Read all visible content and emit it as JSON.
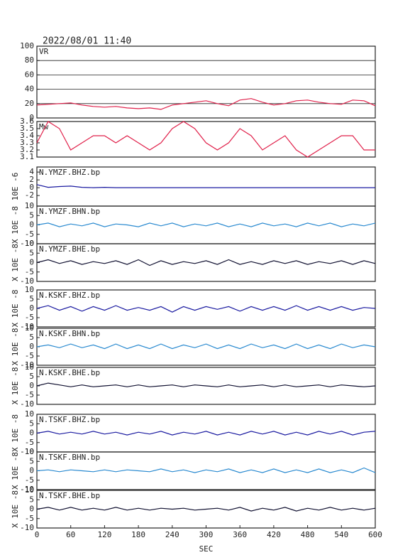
{
  "chart_data": [
    {
      "type": "line",
      "title": "2022/08/01  11:40",
      "panel_label": "VR",
      "ylim": [
        0,
        100
      ],
      "yticks": [
        0,
        20,
        40,
        60,
        80,
        100
      ],
      "grid": true,
      "x": [
        0,
        20,
        40,
        60,
        80,
        100,
        120,
        140,
        160,
        180,
        200,
        220,
        240,
        260,
        280,
        300,
        320,
        340,
        360,
        380,
        400,
        420,
        440,
        460,
        480,
        500,
        520,
        540,
        560,
        580,
        600
      ],
      "series": [
        {
          "color": "#e0204a",
          "values": [
            18,
            19,
            20,
            21,
            18,
            16,
            15,
            16,
            14,
            13,
            14,
            12,
            18,
            20,
            22,
            24,
            20,
            17,
            25,
            27,
            22,
            18,
            20,
            24,
            25,
            22,
            20,
            19,
            25,
            24,
            17
          ]
        }
      ]
    },
    {
      "type": "line",
      "panel_label": "Mw",
      "ylim": [
        3.1,
        3.6
      ],
      "yticks": [
        3.1,
        3.2,
        3.3,
        3.4,
        3.5,
        3.6
      ],
      "grid": false,
      "x": [
        0,
        20,
        40,
        60,
        80,
        100,
        120,
        140,
        160,
        180,
        200,
        220,
        240,
        260,
        280,
        300,
        320,
        340,
        360,
        380,
        400,
        420,
        440,
        460,
        480,
        500,
        520,
        540,
        560,
        580,
        600
      ],
      "series": [
        {
          "color": "#e0204a",
          "values": [
            3.3,
            3.6,
            3.5,
            3.2,
            3.3,
            3.4,
            3.4,
            3.3,
            3.4,
            3.3,
            3.2,
            3.3,
            3.5,
            3.6,
            3.5,
            3.3,
            3.2,
            3.3,
            3.5,
            3.4,
            3.2,
            3.3,
            3.4,
            3.2,
            3.1,
            3.2,
            3.3,
            3.4,
            3.4,
            3.2,
            3.2
          ]
        }
      ]
    },
    {
      "type": "line",
      "panel_label": "N.YMZF.BHZ.bp",
      "ylabel": "10E -6",
      "ylim": [
        -4.7,
        5.3
      ],
      "yticks": [
        -2,
        0,
        2,
        4
      ],
      "grid": false,
      "x": [
        0,
        20,
        40,
        60,
        80,
        100,
        120,
        140,
        160,
        180,
        200,
        220,
        240,
        260,
        280,
        300,
        320,
        340,
        360,
        380,
        400,
        420,
        440,
        460,
        480,
        500,
        520,
        540,
        560,
        580,
        600
      ],
      "series": [
        {
          "color": "#1a1aa0",
          "values": [
            0.8,
            0.1,
            0.3,
            0.4,
            0.1,
            0,
            0.1,
            0,
            0,
            0,
            0,
            0,
            0,
            0,
            0,
            0,
            0,
            0,
            0,
            0,
            0,
            0,
            0,
            0,
            0,
            0,
            0,
            0,
            0,
            0,
            0
          ]
        }
      ]
    },
    {
      "type": "line",
      "panel_label": "N.YMZF.BHN.bp",
      "ylabel": "X 10E -8",
      "ylim": [
        -10,
        10
      ],
      "yticks": [
        -10,
        -5,
        0,
        5,
        10
      ],
      "grid": false,
      "x": [
        0,
        20,
        40,
        60,
        80,
        100,
        120,
        140,
        160,
        180,
        200,
        220,
        240,
        260,
        280,
        300,
        320,
        340,
        360,
        380,
        400,
        420,
        440,
        460,
        480,
        500,
        520,
        540,
        560,
        580,
        600
      ],
      "series": [
        {
          "color": "#2a8ad0",
          "values": [
            0,
            1,
            -1,
            0.5,
            -0.5,
            1,
            -1,
            0.5,
            0,
            -1,
            1,
            -0.5,
            1,
            -1,
            0.5,
            -0.5,
            1,
            -1,
            0.5,
            -1,
            1,
            -0.5,
            0.5,
            -1,
            1,
            -0.5,
            1,
            -1,
            0.5,
            -0.5,
            1
          ]
        }
      ]
    },
    {
      "type": "line",
      "panel_label": "N.YMZF.BHE.bp",
      "ylabel": "X 10E -8",
      "ylim": [
        -10,
        10
      ],
      "yticks": [
        -10,
        -5,
        0,
        5,
        10
      ],
      "grid": false,
      "x": [
        0,
        20,
        40,
        60,
        80,
        100,
        120,
        140,
        160,
        180,
        200,
        220,
        240,
        260,
        280,
        300,
        320,
        340,
        360,
        380,
        400,
        420,
        440,
        460,
        480,
        500,
        520,
        540,
        560,
        580,
        600
      ],
      "series": [
        {
          "color": "#101030",
          "values": [
            0,
            1.5,
            -0.5,
            1,
            -1,
            0.5,
            -0.5,
            1,
            -1,
            1.5,
            -1.5,
            1,
            -1,
            0.5,
            -0.5,
            1,
            -1,
            1.5,
            -1,
            0.5,
            -1,
            1,
            -0.5,
            1,
            -1,
            0.5,
            -0.5,
            1,
            -1,
            1,
            -0.5
          ]
        }
      ]
    },
    {
      "type": "line",
      "panel_label": "N.KSKF.BHZ.bp",
      "ylabel": "X 10E -8",
      "ylim": [
        -10,
        10
      ],
      "yticks": [
        -10,
        -5,
        0,
        5,
        10
      ],
      "grid": false,
      "x": [
        0,
        20,
        40,
        60,
        80,
        100,
        120,
        140,
        160,
        180,
        200,
        220,
        240,
        260,
        280,
        300,
        320,
        340,
        360,
        380,
        400,
        420,
        440,
        460,
        480,
        500,
        520,
        540,
        560,
        580,
        600
      ],
      "series": [
        {
          "color": "#1a1aa0",
          "values": [
            0,
            1.5,
            -1,
            1,
            -1.5,
            1,
            -1,
            1.5,
            -1,
            0.5,
            -1,
            1,
            -2,
            1,
            -1,
            1,
            -0.5,
            1,
            -1.5,
            1,
            -1,
            1,
            -1,
            1.5,
            -1,
            1,
            -1,
            1,
            -1,
            0.5,
            0
          ]
        }
      ]
    },
    {
      "type": "line",
      "panel_label": "N.KSKF.BHN.bp",
      "ylabel": "X 10E -8",
      "ylim": [
        -10,
        10
      ],
      "yticks": [
        -10,
        -5,
        0,
        5,
        10
      ],
      "grid": false,
      "x": [
        0,
        20,
        40,
        60,
        80,
        100,
        120,
        140,
        160,
        180,
        200,
        220,
        240,
        260,
        280,
        300,
        320,
        340,
        360,
        380,
        400,
        420,
        440,
        460,
        480,
        500,
        520,
        540,
        560,
        580,
        600
      ],
      "series": [
        {
          "color": "#2a8ad0",
          "values": [
            0,
            1,
            -0.5,
            1.5,
            -0.5,
            1,
            -1,
            1.5,
            -1,
            1,
            -1,
            1.5,
            -1,
            1,
            -0.5,
            1.5,
            -1,
            1,
            -1,
            1.5,
            -0.5,
            1,
            -1,
            1.5,
            -1,
            1,
            -1,
            1.5,
            -0.5,
            1,
            0
          ]
        }
      ]
    },
    {
      "type": "line",
      "panel_label": "N.KSKF.BHE.bp",
      "ylabel": "X 10E -8",
      "ylim": [
        -10,
        10
      ],
      "yticks": [
        -10,
        -5,
        0,
        5,
        10
      ],
      "grid": false,
      "x": [
        0,
        20,
        40,
        60,
        80,
        100,
        120,
        140,
        160,
        180,
        200,
        220,
        240,
        260,
        280,
        300,
        320,
        340,
        360,
        380,
        400,
        420,
        440,
        460,
        480,
        500,
        520,
        540,
        560,
        580,
        600
      ],
      "series": [
        {
          "color": "#101030",
          "values": [
            0,
            1.5,
            0.5,
            -0.5,
            0.5,
            -0.5,
            0,
            0.5,
            -0.5,
            0.5,
            -0.5,
            0,
            0.5,
            -0.5,
            0.5,
            0,
            -0.5,
            0.5,
            -0.5,
            0,
            0.5,
            -0.5,
            0.5,
            -0.5,
            0,
            0.5,
            -0.5,
            0.5,
            0,
            -0.5,
            0
          ]
        }
      ]
    },
    {
      "type": "line",
      "panel_label": "N.TSKF.BHZ.bp",
      "ylabel": "X 10E -8",
      "ylim": [
        -10,
        10
      ],
      "yticks": [
        -10,
        -5,
        0,
        5,
        10
      ],
      "grid": false,
      "x": [
        0,
        20,
        40,
        60,
        80,
        100,
        120,
        140,
        160,
        180,
        200,
        220,
        240,
        260,
        280,
        300,
        320,
        340,
        360,
        380,
        400,
        420,
        440,
        460,
        480,
        500,
        520,
        540,
        560,
        580,
        600
      ],
      "series": [
        {
          "color": "#1a1aa0",
          "values": [
            0,
            1,
            -0.5,
            0.5,
            -0.5,
            1,
            -0.5,
            0.5,
            -1,
            0.5,
            -0.5,
            1,
            -1,
            0.5,
            -0.5,
            1,
            -1,
            0.5,
            -1,
            1,
            -0.5,
            1,
            -1,
            0.5,
            -1,
            1,
            -0.5,
            1,
            -1,
            0.5,
            1
          ]
        }
      ]
    },
    {
      "type": "line",
      "panel_label": "N.TSKF.BHN.bp",
      "ylabel": "X 10E -8",
      "ylim": [
        -10,
        10
      ],
      "yticks": [
        -10,
        -5,
        0,
        5,
        10
      ],
      "grid": false,
      "x": [
        0,
        20,
        40,
        60,
        80,
        100,
        120,
        140,
        160,
        180,
        200,
        220,
        240,
        260,
        280,
        300,
        320,
        340,
        360,
        380,
        400,
        420,
        440,
        460,
        480,
        500,
        520,
        540,
        560,
        580,
        600
      ],
      "series": [
        {
          "color": "#2a8ad0",
          "values": [
            0,
            0.5,
            -0.5,
            0.5,
            0,
            -0.5,
            0.5,
            -0.5,
            0.5,
            0,
            -0.5,
            1,
            -0.5,
            0.5,
            -1,
            0.5,
            -0.5,
            1,
            -1,
            0.5,
            -1,
            1,
            -1,
            0.5,
            -1,
            1,
            -1,
            0.5,
            -1,
            1.5,
            -1
          ]
        }
      ]
    },
    {
      "type": "line",
      "panel_label": "N.TSKF.BHE.bp",
      "ylabel": "X 10E -8",
      "ylim": [
        -10,
        10
      ],
      "yticks": [
        -10,
        -5,
        0,
        5,
        10
      ],
      "grid": false,
      "xlabel": "SEC",
      "xlim": [
        0,
        600
      ],
      "xticks": [
        0,
        60,
        120,
        180,
        240,
        300,
        360,
        420,
        480,
        540,
        600
      ],
      "x": [
        0,
        20,
        40,
        60,
        80,
        100,
        120,
        140,
        160,
        180,
        200,
        220,
        240,
        260,
        280,
        300,
        320,
        340,
        360,
        380,
        400,
        420,
        440,
        460,
        480,
        500,
        520,
        540,
        560,
        580,
        600
      ],
      "series": [
        {
          "color": "#101030",
          "values": [
            0,
            1,
            -0.5,
            1,
            -0.5,
            0.5,
            -0.5,
            1,
            -0.5,
            0.5,
            -0.5,
            0.5,
            0,
            0.5,
            -0.5,
            0,
            0.5,
            -0.5,
            1,
            -1,
            0.5,
            -0.5,
            1,
            -1,
            0.5,
            -0.5,
            1,
            -0.5,
            0.5,
            -0.5,
            0.5
          ]
        }
      ]
    }
  ]
}
